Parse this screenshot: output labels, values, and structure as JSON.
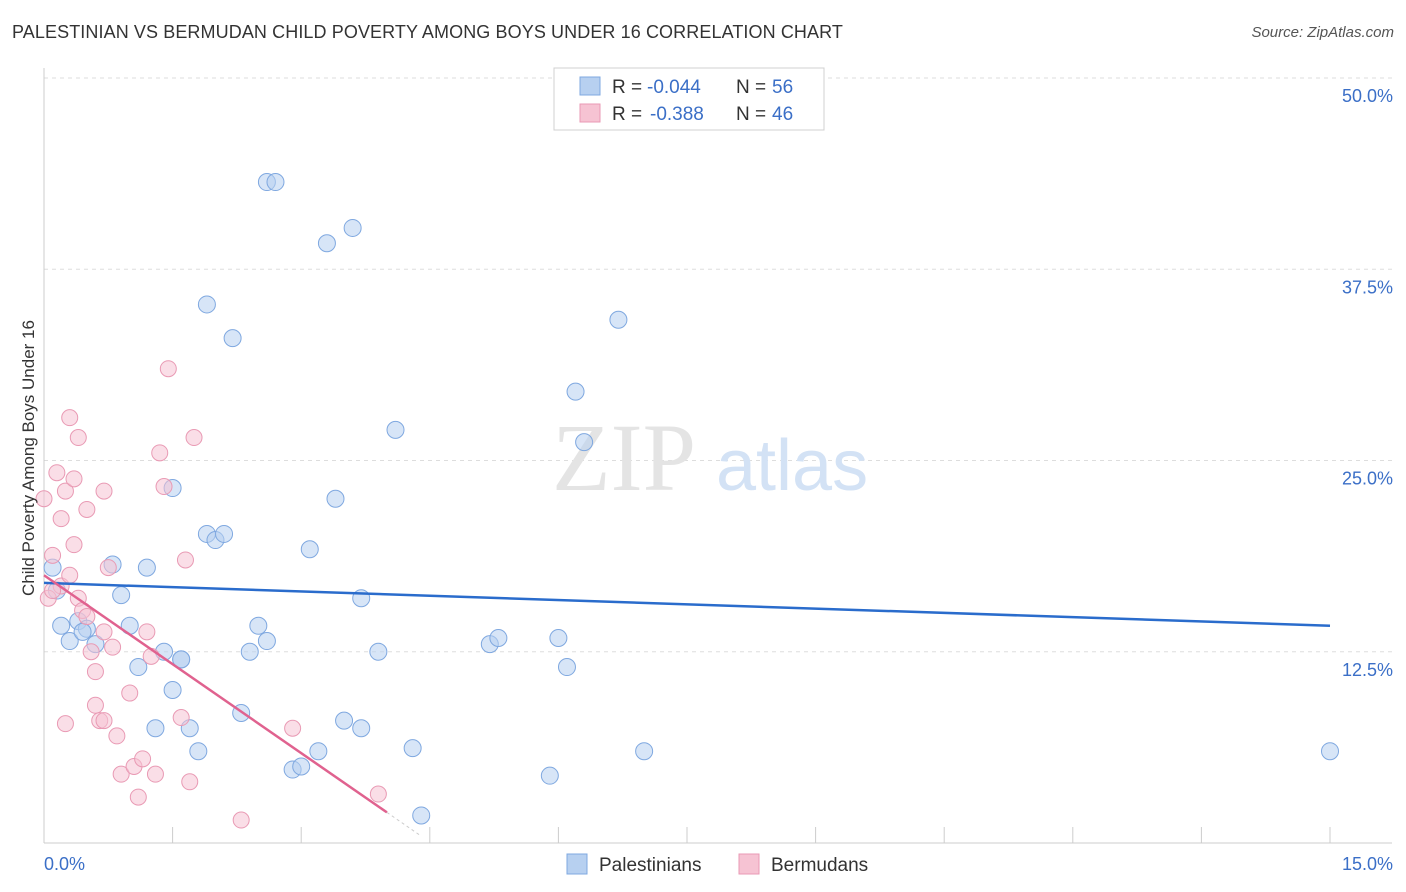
{
  "title": "PALESTINIAN VS BERMUDAN CHILD POVERTY AMONG BOYS UNDER 16 CORRELATION CHART",
  "source": "Source: ZipAtlas.com",
  "watermark": {
    "zip": "ZIP",
    "atlas": "atlas"
  },
  "colors": {
    "blue_fill": "#b7d0f0",
    "blue_stroke": "#7fa8e0",
    "blue_line": "#2a6ccc",
    "pink_fill": "#f6c3d3",
    "pink_stroke": "#e99ab4",
    "pink_line": "#e0628f",
    "axis_text": "#3b6fc7",
    "grid": "#dddddd"
  },
  "legend": {
    "rows": [
      {
        "r_label": "R =",
        "r_value": "-0.044",
        "n_label": "N =",
        "n_value": "56"
      },
      {
        "r_label": "R =",
        "r_value": "-0.388",
        "n_label": "N =",
        "n_value": "46"
      }
    ]
  },
  "bottom_legend": {
    "items": [
      "Palestinians",
      "Bermudans"
    ]
  },
  "chart_data": {
    "type": "scatter",
    "title": "PALESTINIAN VS BERMUDAN CHILD POVERTY AMONG BOYS UNDER 16 CORRELATION CHART",
    "xlabel": "",
    "ylabel": "Child Poverty Among Boys Under 16",
    "xlim": [
      0,
      15
    ],
    "ylim": [
      0,
      50
    ],
    "x_tick_labels": [
      "0.0%",
      "15.0%"
    ],
    "y_tick_values": [
      12.5,
      25.0,
      37.5,
      50.0
    ],
    "y_tick_labels": [
      "12.5%",
      "25.0%",
      "37.5%",
      "50.0%"
    ],
    "series": [
      {
        "name": "Palestinians",
        "r": -0.044,
        "n": 56,
        "trend": {
          "x0": 0.0,
          "y0": 17.0,
          "x1": 15.0,
          "y1": 14.2
        },
        "points": [
          [
            0.1,
            18.0
          ],
          [
            0.15,
            16.5
          ],
          [
            0.2,
            14.2
          ],
          [
            0.3,
            13.2
          ],
          [
            0.4,
            14.5
          ],
          [
            0.5,
            14.0
          ],
          [
            0.6,
            13.0
          ],
          [
            0.8,
            18.2
          ],
          [
            0.9,
            16.2
          ],
          [
            1.0,
            14.2
          ],
          [
            1.1,
            11.5
          ],
          [
            1.2,
            18.0
          ],
          [
            1.3,
            7.5
          ],
          [
            1.4,
            12.5
          ],
          [
            1.5,
            10.0
          ],
          [
            1.5,
            23.2
          ],
          [
            1.6,
            12.0
          ],
          [
            1.7,
            7.5
          ],
          [
            1.8,
            6.0
          ],
          [
            1.9,
            20.2
          ],
          [
            1.9,
            35.2
          ],
          [
            2.0,
            19.8
          ],
          [
            2.1,
            20.2
          ],
          [
            2.2,
            33.0
          ],
          [
            2.3,
            8.5
          ],
          [
            2.4,
            12.5
          ],
          [
            2.5,
            14.2
          ],
          [
            2.6,
            13.2
          ],
          [
            2.6,
            43.2
          ],
          [
            2.7,
            43.2
          ],
          [
            2.9,
            4.8
          ],
          [
            3.0,
            5.0
          ],
          [
            3.1,
            19.2
          ],
          [
            3.2,
            6.0
          ],
          [
            3.3,
            39.2
          ],
          [
            3.4,
            22.5
          ],
          [
            3.5,
            8.0
          ],
          [
            3.6,
            40.2
          ],
          [
            3.7,
            7.5
          ],
          [
            3.7,
            16.0
          ],
          [
            3.9,
            12.5
          ],
          [
            4.1,
            27.0
          ],
          [
            4.3,
            6.2
          ],
          [
            4.4,
            1.8
          ],
          [
            5.2,
            13.0
          ],
          [
            5.3,
            13.4
          ],
          [
            5.9,
            4.4
          ],
          [
            6.0,
            13.4
          ],
          [
            6.1,
            11.5
          ],
          [
            6.2,
            29.5
          ],
          [
            6.3,
            26.2
          ],
          [
            6.7,
            34.2
          ],
          [
            7.0,
            6.0
          ],
          [
            15.0,
            6.0
          ],
          [
            0.45,
            13.8
          ],
          [
            1.6,
            12.0
          ]
        ]
      },
      {
        "name": "Bermudans",
        "r": -0.388,
        "n": 46,
        "trend": {
          "x0": 0.0,
          "y0": 17.5,
          "x1": 4.0,
          "y1": 2.0
        },
        "points": [
          [
            0.0,
            22.5
          ],
          [
            0.05,
            16.0
          ],
          [
            0.1,
            18.8
          ],
          [
            0.15,
            24.2
          ],
          [
            0.2,
            21.2
          ],
          [
            0.2,
            16.8
          ],
          [
            0.25,
            23.0
          ],
          [
            0.3,
            27.8
          ],
          [
            0.3,
            17.5
          ],
          [
            0.35,
            23.8
          ],
          [
            0.35,
            19.5
          ],
          [
            0.4,
            26.5
          ],
          [
            0.4,
            16.0
          ],
          [
            0.45,
            15.2
          ],
          [
            0.5,
            14.8
          ],
          [
            0.5,
            21.8
          ],
          [
            0.55,
            12.5
          ],
          [
            0.6,
            11.2
          ],
          [
            0.6,
            9.0
          ],
          [
            0.65,
            8.0
          ],
          [
            0.7,
            13.8
          ],
          [
            0.7,
            23.0
          ],
          [
            0.75,
            18.0
          ],
          [
            0.8,
            12.8
          ],
          [
            0.85,
            7.0
          ],
          [
            0.9,
            4.5
          ],
          [
            1.0,
            9.8
          ],
          [
            1.05,
            5.0
          ],
          [
            1.1,
            3.0
          ],
          [
            1.15,
            5.5
          ],
          [
            1.2,
            13.8
          ],
          [
            1.25,
            12.2
          ],
          [
            1.3,
            4.5
          ],
          [
            1.35,
            25.5
          ],
          [
            1.4,
            23.3
          ],
          [
            1.45,
            31.0
          ],
          [
            1.6,
            8.2
          ],
          [
            1.65,
            18.5
          ],
          [
            1.7,
            4.0
          ],
          [
            1.75,
            26.5
          ],
          [
            2.3,
            1.5
          ],
          [
            2.9,
            7.5
          ],
          [
            3.9,
            3.2
          ],
          [
            0.1,
            16.5
          ],
          [
            0.25,
            7.8
          ],
          [
            0.7,
            8.0
          ]
        ]
      }
    ]
  }
}
